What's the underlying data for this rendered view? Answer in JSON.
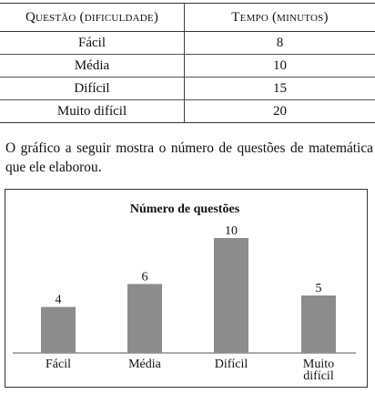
{
  "table": {
    "headers": [
      "Questão (dificuldade)",
      "Tempo (minutos)"
    ],
    "rows": [
      {
        "difficulty": "Fácil",
        "time": "8"
      },
      {
        "difficulty": "Média",
        "time": "10"
      },
      {
        "difficulty": "Difícil",
        "time": "15"
      },
      {
        "difficulty": "Muito difícil",
        "time": "20"
      }
    ]
  },
  "paragraph": "O gráfico a seguir mostra o número de questões de matemática que ele elaborou.",
  "chart_data": {
    "type": "bar",
    "title": "Número de questões",
    "categories": [
      "Fácil",
      "Média",
      "Difícil",
      "Muito difícil"
    ],
    "values": [
      4,
      6,
      10,
      5
    ],
    "data_labels": [
      "4",
      "6",
      "10",
      "5"
    ],
    "ylim": [
      0,
      10
    ],
    "grid": false,
    "xlabel": "",
    "ylabel": "",
    "bar_color": "#8c8c8c"
  }
}
